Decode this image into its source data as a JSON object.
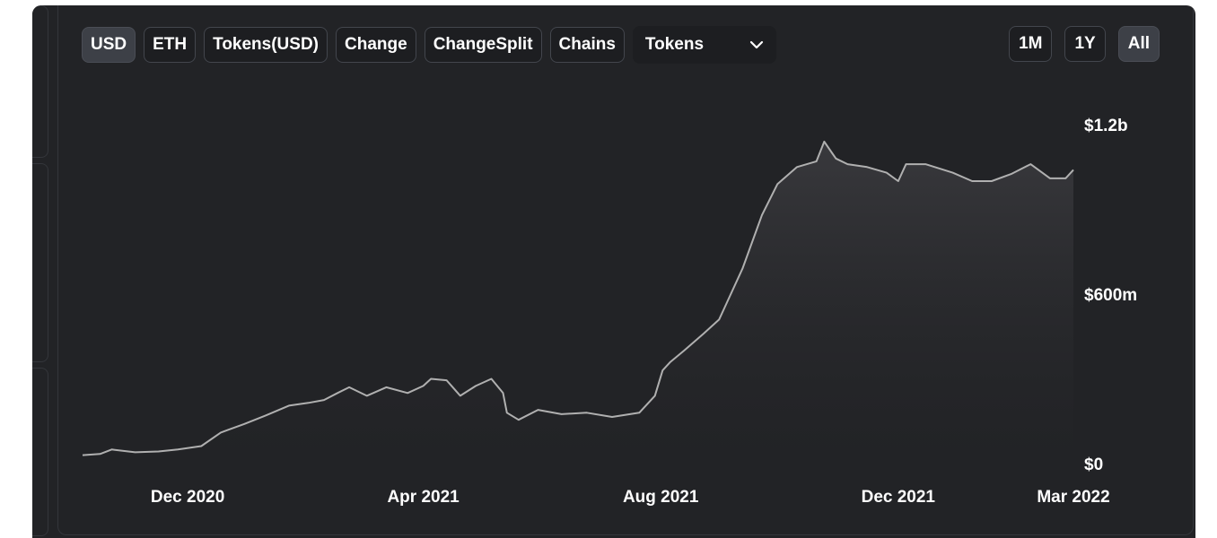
{
  "toolbar": {
    "tabs": [
      {
        "label": "USD",
        "active": true
      },
      {
        "label": "ETH",
        "active": false
      },
      {
        "label": "Tokens(USD)",
        "active": false
      },
      {
        "label": "Change",
        "active": false
      },
      {
        "label": "ChangeSplit",
        "active": false
      },
      {
        "label": "Chains",
        "active": false
      }
    ],
    "dropdown": {
      "selected": "Tokens",
      "icon": "chevron-down-icon"
    }
  },
  "range": {
    "options": [
      {
        "label": "1M",
        "active": false
      },
      {
        "label": "1Y",
        "active": false
      },
      {
        "label": "All",
        "active": true
      }
    ]
  },
  "colors": {
    "background": "#222326",
    "line": "#b0b0b0",
    "area_top": "#3a3a3e",
    "text": "#ffffff"
  },
  "chart_data": {
    "type": "area",
    "title": "",
    "xlabel": "",
    "ylabel": "",
    "x_ticks": [
      "Dec 2020",
      "Apr 2021",
      "Aug 2021",
      "Dec 2021",
      "Mar 2022"
    ],
    "y_ticks": [
      "$0",
      "$600m",
      "$1.2b"
    ],
    "ylim": [
      0,
      1200000000
    ],
    "xlim": [
      "2020-10-08",
      "2022-03-01"
    ],
    "grid": false,
    "series": [
      {
        "name": "",
        "x": [
          "2020-10-08",
          "2020-10-17",
          "2020-10-23",
          "2020-11-04",
          "2020-11-16",
          "2020-11-26",
          "2020-12-08",
          "2020-12-18",
          "2020-12-30",
          "2021-01-10",
          "2021-01-22",
          "2021-02-01",
          "2021-02-09",
          "2021-02-16",
          "2021-02-22",
          "2021-03-03",
          "2021-03-13",
          "2021-03-24",
          "2021-04-01",
          "2021-04-05",
          "2021-04-13",
          "2021-04-20",
          "2021-04-28",
          "2021-05-06",
          "2021-05-12",
          "2021-05-14",
          "2021-05-20",
          "2021-05-30",
          "2021-06-11",
          "2021-06-24",
          "2021-07-07",
          "2021-07-21",
          "2021-07-29",
          "2021-08-02",
          "2021-08-06",
          "2021-08-13",
          "2021-08-23",
          "2021-08-31",
          "2021-09-04",
          "2021-09-12",
          "2021-09-22",
          "2021-09-30",
          "2021-10-10",
          "2021-10-20",
          "2021-10-24",
          "2021-10-28",
          "2021-10-30",
          "2021-11-05",
          "2021-11-15",
          "2021-11-25",
          "2021-12-01",
          "2021-12-05",
          "2021-12-15",
          "2021-12-29",
          "2022-01-08",
          "2022-01-18",
          "2022-01-28",
          "2022-02-07",
          "2022-02-17",
          "2022-02-25",
          "2022-03-01"
        ],
        "y": [
          30000000,
          34000000,
          50000000,
          40000000,
          43000000,
          50000000,
          62000000,
          110000000,
          140000000,
          170000000,
          205000000,
          215000000,
          225000000,
          250000000,
          270000000,
          240000000,
          270000000,
          250000000,
          275000000,
          300000000,
          295000000,
          240000000,
          275000000,
          300000000,
          250000000,
          180000000,
          155000000,
          190000000,
          175000000,
          180000000,
          165000000,
          180000000,
          240000000,
          330000000,
          360000000,
          400000000,
          460000000,
          510000000,
          570000000,
          690000000,
          880000000,
          990000000,
          1050000000,
          1070000000,
          1140000000,
          1100000000,
          1080000000,
          1060000000,
          1050000000,
          1030000000,
          1000000000,
          1060000000,
          1060000000,
          1030000000,
          1000000000,
          1000000000,
          1025000000,
          1060000000,
          1010000000,
          1010000000,
          1040000000
        ]
      }
    ]
  }
}
